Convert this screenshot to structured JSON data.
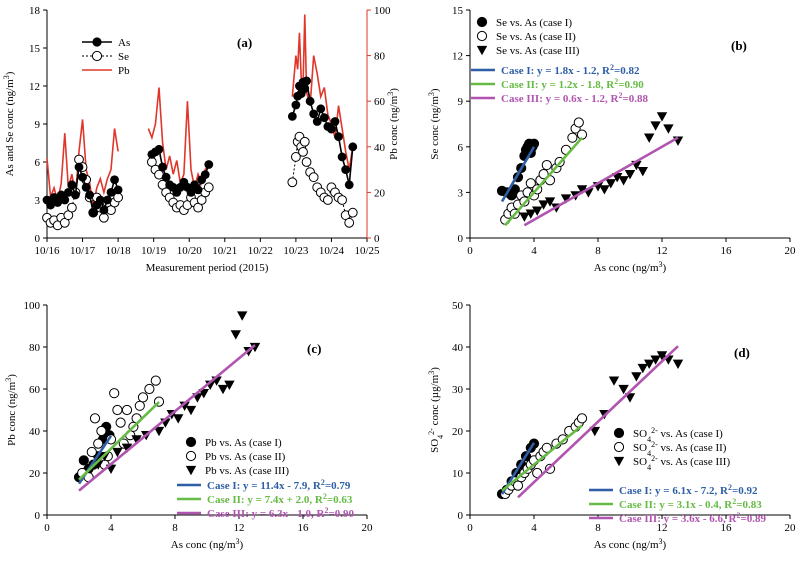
{
  "colors": {
    "blue": "#2e5fa6",
    "green": "#66bb44",
    "purple": "#b054b0",
    "red": "#e0362b",
    "black": "#000000"
  },
  "chart_data": [
    {
      "id": "a",
      "type": "line",
      "panel_label": "(a)",
      "xlabel": "Measurement period (2015)",
      "ylabel": "As and Se conc (ng/m3)",
      "y2label": "Pb conc (ng/m3)",
      "x_ticks": [
        "10/16",
        "10/17",
        "10/18",
        "10/19",
        "10/20",
        "10/21",
        "10/22",
        "10/23",
        "10/24",
        "10/25"
      ],
      "ylim": [
        0,
        18
      ],
      "y_ticks": [
        "0",
        "3",
        "6",
        "9",
        "12",
        "15",
        "18"
      ],
      "y2lim": [
        0,
        100
      ],
      "y2_ticks": [
        "0",
        "20",
        "40",
        "60",
        "80",
        "100"
      ],
      "legend": [
        "As",
        "Se",
        "Pb"
      ],
      "series": [
        {
          "name": "As",
          "axis": "left",
          "segments": [
            {
              "x": [
                0,
                0.1,
                0.2,
                0.3,
                0.4,
                0.5,
                0.6,
                0.7,
                0.8,
                0.9,
                1.0,
                1.1,
                1.2,
                1.3,
                1.4,
                1.5,
                1.6,
                1.7,
                1.8,
                1.9,
                2.0
              ],
              "y": [
                3.0,
                2.6,
                3.2,
                2.8,
                3.4,
                3.0,
                3.6,
                4.2,
                3.4,
                5.6,
                4.8,
                4.0,
                3.4,
                2.0,
                2.6,
                3.0,
                2.2,
                3.0,
                3.6,
                4.6,
                3.8
              ]
            },
            {
              "x": [
                2.95,
                3.05,
                3.15,
                3.25,
                3.35,
                3.45,
                3.55,
                3.65,
                3.75,
                3.85,
                3.95,
                4.05,
                4.15,
                4.25,
                4.35,
                4.45,
                4.55
              ],
              "y": [
                6.6,
                6.8,
                7.0,
                5.6,
                4.8,
                4.2,
                4.0,
                3.6,
                4.0,
                4.4,
                4.0,
                3.6,
                4.2,
                3.8,
                4.6,
                5.0,
                5.8
              ]
            },
            {
              "x": [
                6.9,
                7.0,
                7.05,
                7.1,
                7.15,
                7.2,
                7.25,
                7.3,
                7.4,
                7.5,
                7.6,
                7.7,
                7.8,
                7.9,
                8.0,
                8.1,
                8.2,
                8.3,
                8.4,
                8.5,
                8.6
              ],
              "y": [
                9.6,
                10.5,
                11.2,
                12.0,
                11.4,
                12.3,
                11.8,
                12.4,
                10.8,
                9.8,
                9.2,
                10.2,
                9.5,
                8.8,
                8.6,
                9.2,
                8.0,
                6.4,
                5.4,
                4.2,
                7.2
              ]
            }
          ]
        },
        {
          "name": "Se",
          "axis": "left",
          "segments": [
            {
              "x": [
                0,
                0.1,
                0.2,
                0.3,
                0.4,
                0.5,
                0.6,
                0.7,
                0.8,
                0.9,
                1.0,
                1.1,
                1.2,
                1.3,
                1.4,
                1.5,
                1.6,
                1.7,
                1.8,
                1.9,
                2.0
              ],
              "y": [
                1.6,
                1.2,
                1.4,
                1.0,
                1.6,
                1.2,
                1.8,
                2.4,
                3.6,
                6.2,
                5.6,
                4.6,
                3.2,
                2.0,
                3.2,
                2.4,
                1.6,
                2.8,
                2.2,
                2.8,
                3.2
              ]
            },
            {
              "x": [
                2.95,
                3.05,
                3.15,
                3.25,
                3.35,
                3.45,
                3.55,
                3.65,
                3.75,
                3.85,
                3.95,
                4.05,
                4.15,
                4.25,
                4.35,
                4.45,
                4.55
              ],
              "y": [
                6.0,
                5.4,
                5.0,
                4.2,
                3.6,
                3.2,
                2.8,
                2.4,
                2.6,
                2.2,
                2.6,
                3.2,
                2.8,
                2.4,
                3.0,
                3.6,
                4.0
              ]
            },
            {
              "x": [
                6.9,
                7.0,
                7.05,
                7.1,
                7.15,
                7.2,
                7.25,
                7.3,
                7.4,
                7.5,
                7.6,
                7.7,
                7.8,
                7.9,
                8.0,
                8.1,
                8.2,
                8.3,
                8.4,
                8.5,
                8.6
              ],
              "y": [
                4.4,
                6.4,
                7.6,
                8.0,
                7.2,
                6.8,
                7.6,
                6.0,
                5.2,
                4.8,
                4.0,
                3.6,
                3.2,
                3.0,
                4.0,
                3.6,
                3.2,
                3.0,
                1.8,
                1.2,
                2.0
              ]
            }
          ]
        },
        {
          "name": "Pb",
          "axis": "right",
          "segments": [
            {
              "x": [
                0,
                0.1,
                0.2,
                0.3,
                0.4,
                0.5,
                0.6,
                0.7,
                0.8,
                0.9,
                1.0,
                1.1,
                1.2,
                1.3,
                1.4,
                1.5,
                1.6,
                1.7,
                1.8,
                1.9,
                2.0
              ],
              "y": [
                35,
                18,
                22,
                16,
                24,
                46,
                22,
                28,
                18,
                38,
                52,
                30,
                24,
                14,
                22,
                26,
                20,
                26,
                30,
                48,
                38
              ]
            },
            {
              "x": [
                2.85,
                2.95,
                3.05,
                3.15,
                3.25,
                3.35,
                3.45,
                3.55,
                3.65,
                3.75,
                3.85,
                3.95,
                4.05,
                4.15,
                4.25,
                4.35,
                4.45,
                4.55
              ],
              "y": [
                48,
                44,
                50,
                66,
                42,
                30,
                36,
                28,
                34,
                24,
                28,
                60,
                30,
                22,
                28,
                24,
                30,
                32
              ]
            },
            {
              "x": [
                6.9,
                7.0,
                7.05,
                7.1,
                7.15,
                7.2,
                7.25,
                7.3,
                7.4,
                7.5,
                7.6,
                7.7,
                7.8,
                7.9,
                8.0,
                8.1,
                8.2,
                8.3,
                8.4,
                8.5,
                8.6
              ],
              "y": [
                62,
                80,
                74,
                90,
                70,
                66,
                98,
                64,
                58,
                80,
                72,
                62,
                66,
                54,
                50,
                44,
                58,
                48,
                38,
                30,
                40
              ]
            }
          ]
        }
      ]
    },
    {
      "id": "b",
      "type": "scatter",
      "panel_label": "(b)",
      "xlabel": "As conc (ng/m3)",
      "ylabel": "Se conc (ng/m3)",
      "xlim": [
        0,
        20
      ],
      "ylim": [
        0,
        15
      ],
      "x_ticks": [
        "0",
        "4",
        "8",
        "12",
        "16",
        "20"
      ],
      "y_ticks": [
        "0",
        "3",
        "6",
        "9",
        "12",
        "15"
      ],
      "legend": [
        "Se vs. As (case I)",
        "Se vs. As (case II)",
        "Se vs. As (case III)"
      ],
      "equations": [
        "Case I:  y = 1.8x - 1.2, R2=0.82",
        "Case II:  y = 1.2x - 1.8, R2=0.90",
        "Case III: y = 0.6x - 1.2, R2=0.88"
      ],
      "series": [
        {
          "name": "case I",
          "marker": "filled-circle",
          "x": [
            2.0,
            2.3,
            2.6,
            2.8,
            3.0,
            3.2,
            3.4,
            3.5,
            3.6,
            3.7,
            3.8,
            3.9,
            4.0
          ],
          "y": [
            3.1,
            3.0,
            2.8,
            3.2,
            4.0,
            4.6,
            5.4,
            5.8,
            6.0,
            6.2,
            5.6,
            6.0,
            6.2
          ]
        },
        {
          "name": "case II",
          "marker": "open-circle",
          "x": [
            2.2,
            2.4,
            2.6,
            2.8,
            3.0,
            3.2,
            3.4,
            3.6,
            3.8,
            4.0,
            4.2,
            4.4,
            4.6,
            4.8,
            5.0,
            5.4,
            5.6,
            6.0,
            6.4,
            6.6,
            6.8,
            7.0
          ],
          "y": [
            1.2,
            1.6,
            2.0,
            1.6,
            2.2,
            2.8,
            2.4,
            3.0,
            3.6,
            2.8,
            3.2,
            3.8,
            4.2,
            4.8,
            3.8,
            4.6,
            5.0,
            5.8,
            6.6,
            7.2,
            7.6,
            6.8
          ]
        },
        {
          "name": "case III",
          "marker": "filled-triangle",
          "x": [
            3.4,
            3.8,
            4.2,
            4.6,
            5.0,
            5.4,
            6.0,
            6.6,
            7.0,
            7.4,
            8.0,
            8.4,
            8.8,
            9.2,
            9.6,
            10.0,
            10.4,
            10.8,
            11.2,
            11.6,
            12.0,
            12.4,
            13.0
          ],
          "y": [
            1.4,
            1.6,
            1.8,
            2.2,
            2.4,
            2.0,
            2.6,
            2.8,
            3.2,
            3.0,
            3.4,
            3.2,
            3.6,
            4.0,
            3.8,
            4.2,
            4.8,
            4.4,
            6.6,
            7.4,
            8.0,
            7.2,
            6.4
          ]
        }
      ],
      "fits": [
        {
          "name": "Case I",
          "slope": 1.8,
          "intercept": -1.2,
          "x_range": [
            2,
            4
          ]
        },
        {
          "name": "Case II",
          "slope": 1.2,
          "intercept": -1.8,
          "x_range": [
            2.2,
            7
          ]
        },
        {
          "name": "Case III",
          "slope": 0.6,
          "intercept": -1.2,
          "x_range": [
            3.4,
            13
          ]
        }
      ]
    },
    {
      "id": "c",
      "type": "scatter",
      "panel_label": "(c)",
      "xlabel": "As conc (ng/m3)",
      "ylabel": "Pb conc (ng/m3)",
      "xlim": [
        0,
        20
      ],
      "ylim": [
        0,
        100
      ],
      "x_ticks": [
        "0",
        "4",
        "8",
        "12",
        "16",
        "20"
      ],
      "y_ticks": [
        "0",
        "20",
        "40",
        "60",
        "80",
        "100"
      ],
      "legend": [
        "Pb vs. As (case I)",
        "Pb vs. As (case II)",
        "Pb vs. As (case III)"
      ],
      "equations": [
        "Case I: y = 11.4x - 7.9, R2=0.79",
        "Case II: y = 7.4x + 2.0, R2=0.63",
        "Case III: y = 6.3x - 1.0, R2=0.90"
      ],
      "series": [
        {
          "name": "case I",
          "marker": "filled-circle",
          "x": [
            2.0,
            2.3,
            2.6,
            2.9,
            3.2,
            3.5,
            3.7,
            3.9
          ],
          "y": [
            18,
            26,
            22,
            24,
            28,
            36,
            42,
            38
          ]
        },
        {
          "name": "case II",
          "marker": "open-circle",
          "x": [
            2.2,
            2.6,
            2.8,
            3.0,
            3.2,
            3.4,
            3.6,
            3.8,
            4.0,
            4.2,
            4.4,
            4.6,
            4.8,
            5.0,
            5.2,
            5.4,
            5.6,
            5.8,
            6.0,
            6.4,
            6.8,
            7.0
          ],
          "y": [
            20,
            18,
            30,
            46,
            34,
            40,
            24,
            28,
            36,
            58,
            50,
            44,
            34,
            50,
            38,
            42,
            46,
            52,
            56,
            60,
            64,
            54
          ]
        },
        {
          "name": "case III",
          "marker": "filled-triangle",
          "x": [
            3.2,
            3.6,
            4.0,
            4.4,
            5.0,
            5.6,
            6.2,
            7.0,
            7.4,
            7.8,
            8.2,
            8.6,
            9.0,
            9.4,
            9.8,
            10.2,
            10.6,
            11.0,
            11.4,
            11.8,
            12.2,
            12.6,
            13.0
          ],
          "y": [
            24,
            28,
            22,
            30,
            32,
            36,
            38,
            40,
            44,
            48,
            46,
            52,
            50,
            56,
            58,
            62,
            64,
            60,
            62,
            86,
            95,
            78,
            80
          ]
        }
      ],
      "fits": [
        {
          "name": "Case I",
          "slope": 11.4,
          "intercept": -7.9,
          "x_range": [
            2,
            4
          ]
        },
        {
          "name": "Case II",
          "slope": 7.4,
          "intercept": 2.0,
          "x_range": [
            2,
            7
          ]
        },
        {
          "name": "Case III",
          "slope": 6.3,
          "intercept": -1.0,
          "x_range": [
            2,
            13
          ]
        }
      ]
    },
    {
      "id": "d",
      "type": "scatter",
      "panel_label": "(d)",
      "xlabel": "As conc (ng/m3)",
      "ylabel": "SO42- conc (µg/m3)",
      "xlim": [
        0,
        20
      ],
      "ylim": [
        0,
        50
      ],
      "x_ticks": [
        "0",
        "4",
        "8",
        "12",
        "16",
        "20"
      ],
      "y_ticks": [
        "0",
        "10",
        "20",
        "30",
        "40",
        "50"
      ],
      "legend": [
        "SO42- vs. As (case I)",
        "SO42- vs. As (case II)",
        "SO42- vs. As (case III)"
      ],
      "equations": [
        "Case I: y = 6.1x - 7.2, R2=0.92",
        "Case II: y = 3.1x - 0.4, R2=0.83",
        "Case III: y = 3.6x - 6.6, R2=0.89"
      ],
      "series": [
        {
          "name": "case I",
          "marker": "filled-circle",
          "x": [
            2.0,
            2.3,
            2.6,
            2.9,
            3.2,
            3.5,
            3.8,
            4.0
          ],
          "y": [
            5,
            6,
            8,
            10,
            12,
            14,
            16,
            17
          ]
        },
        {
          "name": "case II",
          "marker": "open-circle",
          "x": [
            2.2,
            2.4,
            2.6,
            2.8,
            3.0,
            3.2,
            3.4,
            3.6,
            3.8,
            4.0,
            4.2,
            4.4,
            4.6,
            4.8,
            5.0,
            5.4,
            5.8,
            6.2,
            6.6,
            6.8,
            7.0
          ],
          "y": [
            5,
            6,
            7,
            8,
            7,
            9,
            10,
            11,
            12,
            13,
            10,
            14,
            15,
            16,
            11,
            17,
            18,
            20,
            21,
            22,
            23
          ]
        },
        {
          "name": "case III",
          "marker": "filled-triangle",
          "x": [
            7.8,
            8.4,
            9.0,
            9.6,
            10.0,
            10.4,
            10.8,
            11.2,
            11.6,
            12.0,
            12.4,
            13.0
          ],
          "y": [
            20,
            24,
            32,
            30,
            28,
            33,
            35,
            36,
            37,
            38,
            37,
            36
          ]
        }
      ],
      "fits": [
        {
          "name": "Case I",
          "slope": 6.1,
          "intercept": -7.2,
          "x_range": [
            2,
            4
          ]
        },
        {
          "name": "Case II",
          "slope": 3.1,
          "intercept": -0.4,
          "x_range": [
            2,
            7
          ]
        },
        {
          "name": "Case III",
          "slope": 3.6,
          "intercept": -6.6,
          "x_range": [
            3,
            13
          ]
        }
      ]
    }
  ]
}
